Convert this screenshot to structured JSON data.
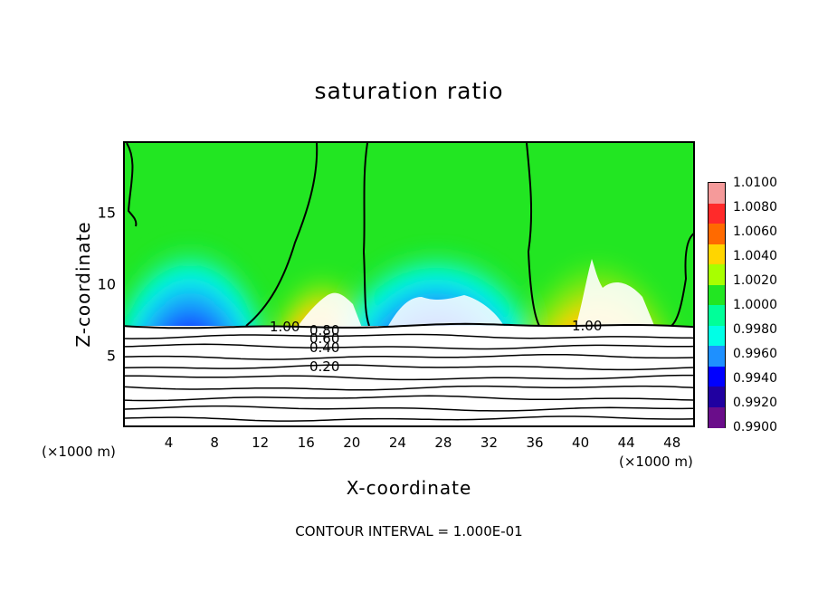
{
  "chart_data": {
    "type": "heatmap",
    "title": "saturation ratio",
    "xlabel": "X-coordinate",
    "ylabel": "Z-coordinate",
    "x_unit_label": "(×1000 m)",
    "xlim": [
      0,
      50
    ],
    "ylim": [
      0,
      20
    ],
    "x_ticks": [
      "4",
      "8",
      "12",
      "16",
      "20",
      "24",
      "28",
      "32",
      "36",
      "40",
      "44",
      "48"
    ],
    "y_ticks": [
      "5",
      "10",
      "15"
    ],
    "footer": "CONTOUR INTERVAL = 1.000E-01",
    "colorbar": {
      "labels": [
        "1.0100",
        "1.0080",
        "1.0060",
        "1.0040",
        "1.0020",
        "1.0000",
        "0.9980",
        "0.9960",
        "0.9940",
        "0.9920",
        "0.9900"
      ],
      "colors": [
        "#f59a9a",
        "#ff2a2a",
        "#ff6a00",
        "#ffd500",
        "#a8ff00",
        "#22e622",
        "#00ff99",
        "#00ffe6",
        "#1e90ff",
        "#0000ff",
        "#2000a0",
        "#6a0d8a"
      ]
    },
    "contour_labels": [
      "1.00",
      "0.80",
      "0.60",
      "0.40",
      "0.20",
      "1.00"
    ],
    "contour_levels_below_terrain": [
      1.0,
      0.9,
      0.8,
      0.7,
      0.6,
      0.5,
      0.4,
      0.3,
      0.2,
      0.1
    ],
    "regions": [
      {
        "x_center": 7,
        "z_center": 9.5,
        "value": 0.991,
        "desc": "dry plume"
      },
      {
        "x_center": 19,
        "z_center": 9.5,
        "value": 1.009,
        "desc": "moist plume"
      },
      {
        "x_center": 28,
        "z_center": 9,
        "value": 0.991,
        "desc": "dry plume"
      },
      {
        "x_center": 42,
        "z_center": 11.5,
        "value": 1.01,
        "desc": "moist plume"
      }
    ],
    "background_value": 1.0,
    "terrain_top_z": 7.2
  }
}
